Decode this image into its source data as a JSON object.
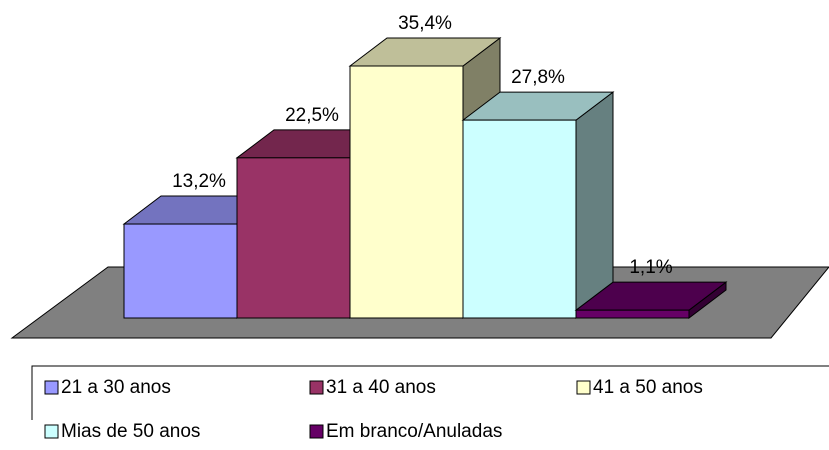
{
  "chart_data": {
    "type": "bar3d",
    "categories": [
      "21 a 30 anos",
      "31 a 40 anos",
      "41 a 50 anos",
      "Mias de 50 anos",
      "Em branco/Anuladas"
    ],
    "values": [
      13.2,
      22.5,
      35.4,
      27.8,
      1.1
    ],
    "value_labels": [
      "13,2%",
      "22,5%",
      "35,4%",
      "27,8%",
      "1,1%"
    ],
    "colors": [
      "#9999ff",
      "#993366",
      "#ffffcc",
      "#ccffff",
      "#660066"
    ]
  }
}
